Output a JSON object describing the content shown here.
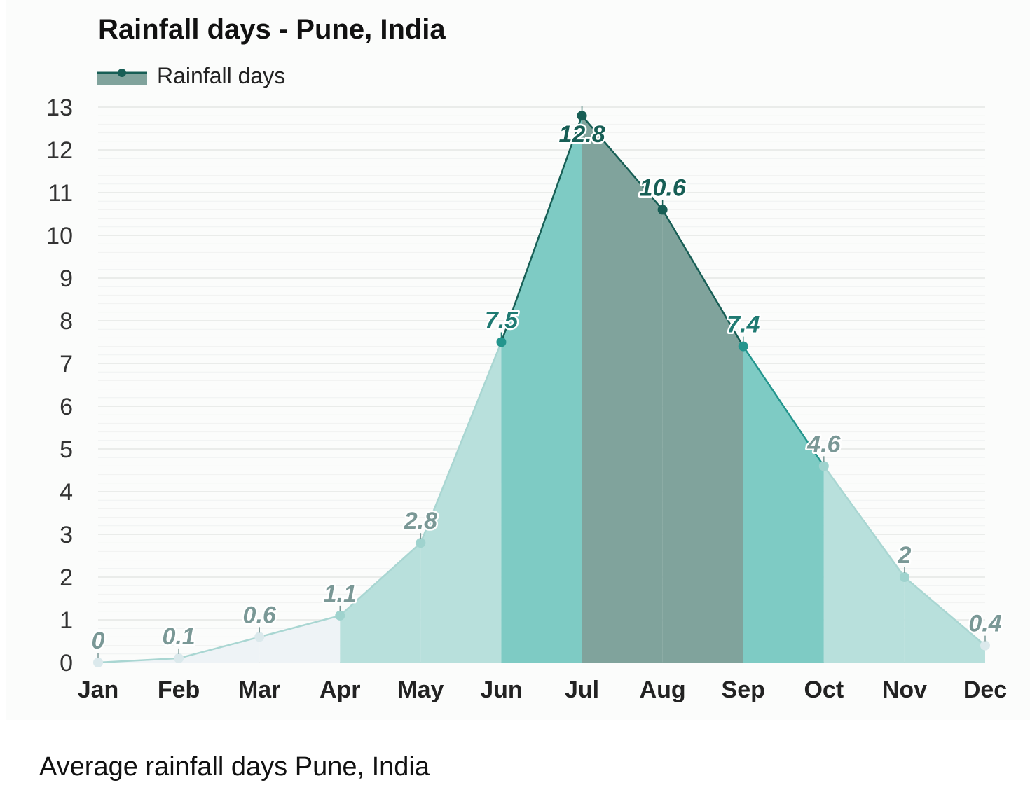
{
  "chart_data": {
    "type": "area",
    "title": "Rainfall days - Pune, India",
    "categories": [
      "Jan",
      "Feb",
      "Mar",
      "Apr",
      "May",
      "Jun",
      "Jul",
      "Aug",
      "Sep",
      "Oct",
      "Nov",
      "Dec"
    ],
    "series": [
      {
        "name": "Rainfall days",
        "values": [
          0,
          0.1,
          0.6,
          1.1,
          2.8,
          7.5,
          12.8,
          10.6,
          7.4,
          4.6,
          2,
          0.4
        ],
        "labels": [
          "0",
          "0.1",
          "0.6",
          "1.1",
          "2.8",
          "7.5",
          "12.8",
          "10.6",
          "7.4",
          "4.6",
          "2",
          "0.4"
        ]
      }
    ],
    "yticks": [
      "0",
      "1",
      "2",
      "3",
      "4",
      "5",
      "6",
      "7",
      "8",
      "9",
      "10",
      "11",
      "12",
      "13"
    ],
    "ylim": [
      0,
      13
    ],
    "xlabel": "",
    "ylabel": "",
    "grid": true,
    "legend_position": "top-left",
    "colors": {
      "level_0": "#eef3f6",
      "level_1": "#b8e0dc",
      "level_2": "#7ecbc4",
      "level_3": "#80a39c",
      "line_low": "#a9d6d2",
      "line_mid": "#23958d",
      "line_high": "#175e55",
      "grid": "#e4e6e5",
      "axis": "#c5cac9"
    }
  },
  "page": {
    "subtitle": "Average rainfall days Pune, India"
  }
}
